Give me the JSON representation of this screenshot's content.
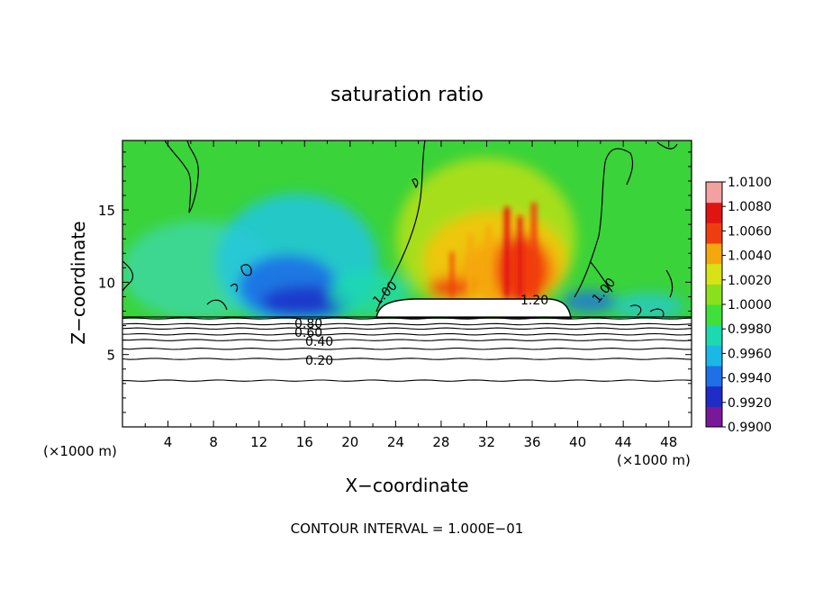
{
  "chart_data": {
    "type": "heatmap",
    "title": "saturation ratio",
    "xlabel": "X−coordinate",
    "ylabel": "Z−coordinate",
    "x_unit_label": "(×1000 m)",
    "y_unit_label": "(×1000 m)",
    "xlim": [
      0,
      50
    ],
    "ylim": [
      0,
      19.8
    ],
    "x_ticks": [
      4,
      8,
      12,
      16,
      20,
      24,
      28,
      32,
      36,
      40,
      44,
      48
    ],
    "y_ticks": [
      5,
      10,
      15
    ],
    "colorbar": {
      "min": 0.99,
      "max": 1.01,
      "labels": [
        "1.0100",
        "1.0080",
        "1.0060",
        "1.0040",
        "1.0020",
        "1.0000",
        "0.9980",
        "0.9960",
        "0.9940",
        "0.9920",
        "0.9900"
      ],
      "colors": [
        "#7a189a",
        "#1e2dc7",
        "#1f6fe6",
        "#19b8e6",
        "#1ed9b0",
        "#3fe03a",
        "#8be01e",
        "#d8e214",
        "#f5a70e",
        "#f03d0f",
        "#e11414",
        "#f2a0a0"
      ]
    },
    "contour_labels": [
      "1.20",
      "1.00",
      "1.00",
      "0.80",
      "0.60",
      "0.40",
      "0.20"
    ],
    "contour_levels_z": [
      3.2,
      4.7,
      5.4,
      6.0,
      6.4,
      6.8,
      7.1,
      7.5
    ],
    "cloud_top_z": 7.6,
    "footer": "CONTOUR INTERVAL = 1.000E−01"
  }
}
